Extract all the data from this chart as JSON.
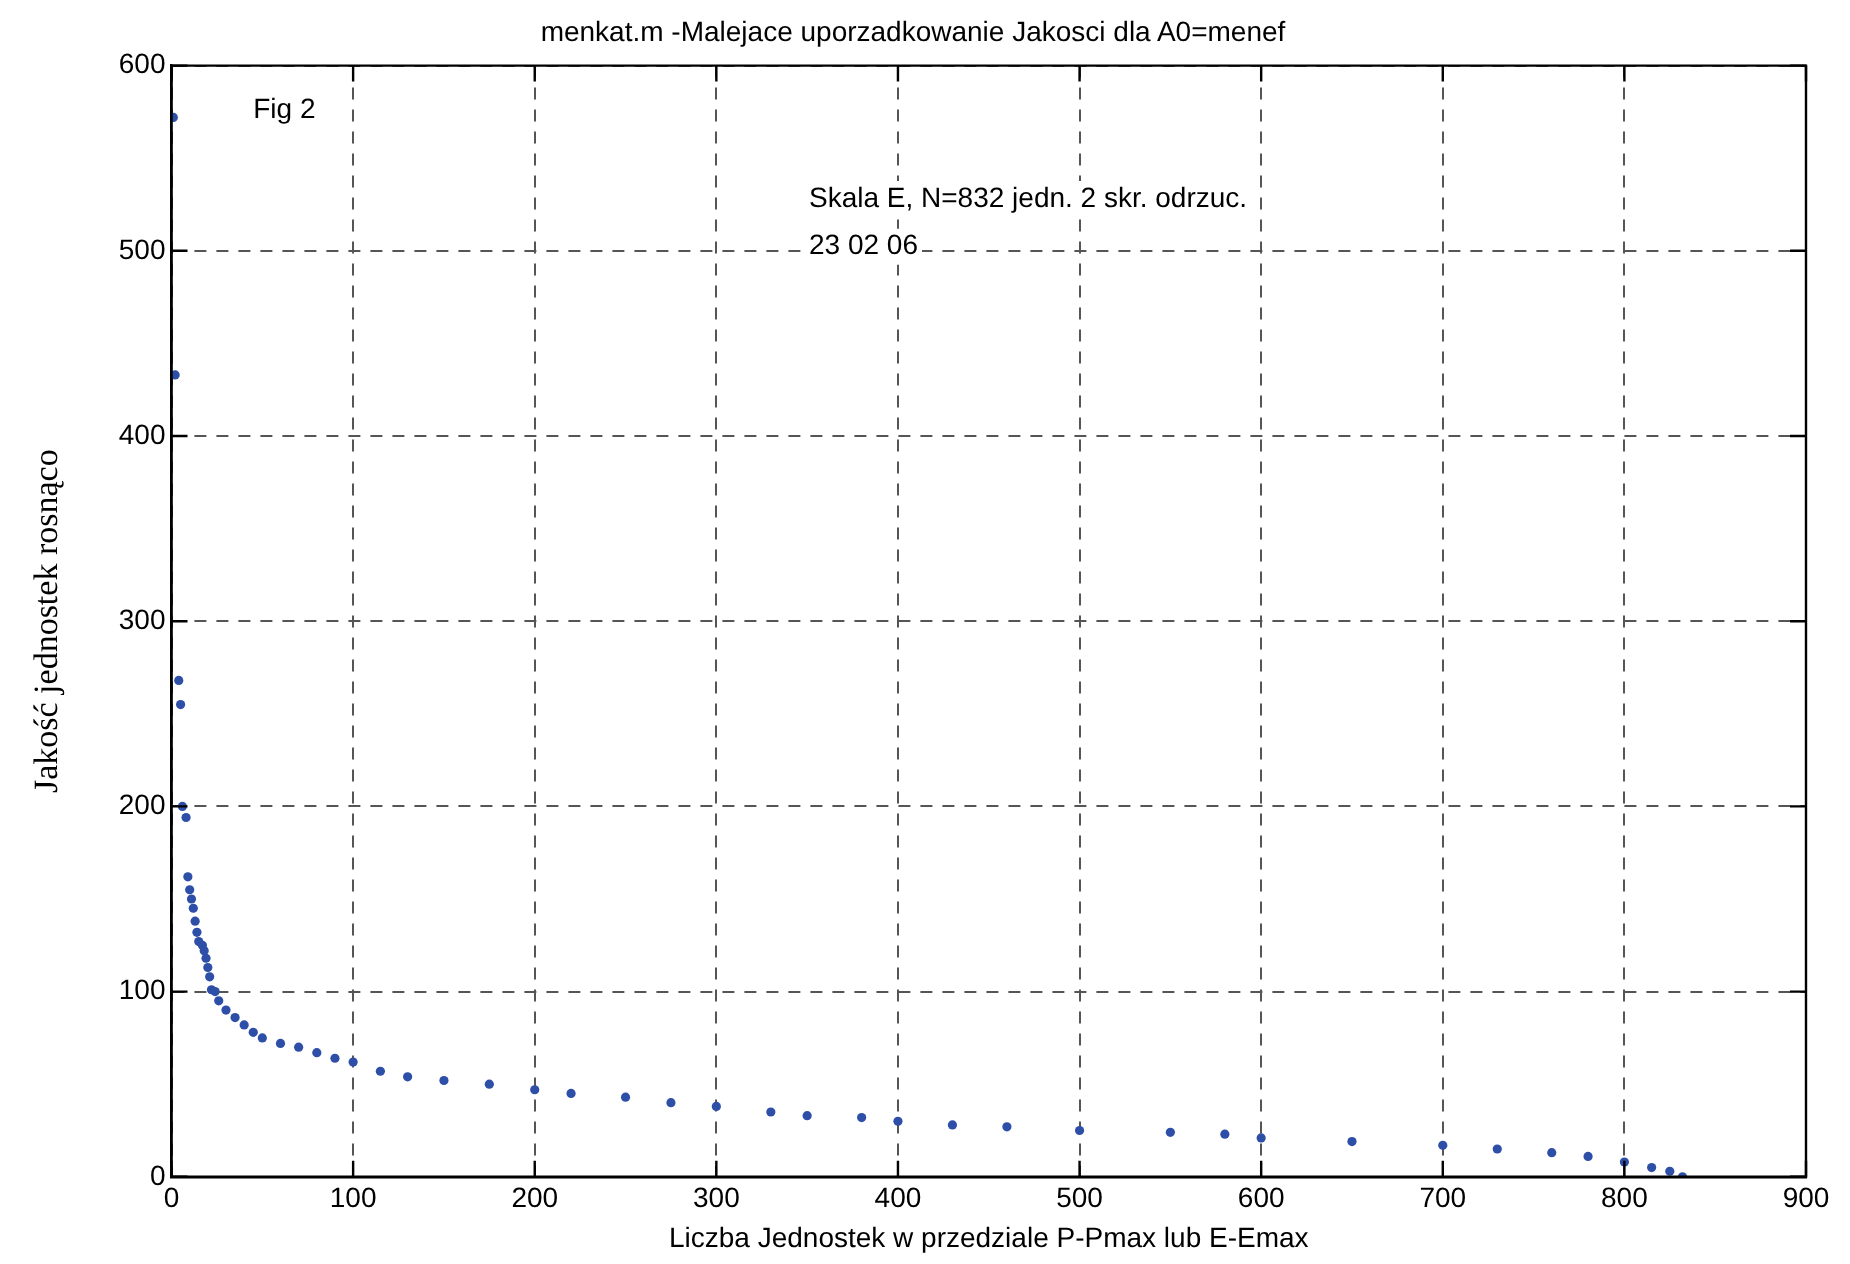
{
  "chart_data": {
    "type": "scatter",
    "title": "menkat.m -Malejace uporzadkowanie Jakosci dla A0=menef",
    "xlabel": "Liczba Jednostek w przedziale P-Pmax lub E-Emax",
    "ylabel": "Jakość jednostek rosnąco",
    "annotations": [
      "Fig 2",
      "Skala E, N=832 jedn. 2 skr. odrzuc.",
      "23 02 06"
    ],
    "x": [
      1,
      2,
      4,
      5,
      6,
      8,
      9,
      10,
      11,
      12,
      13,
      14,
      15,
      17,
      18,
      19,
      20,
      21,
      22,
      24,
      26,
      30,
      35,
      40,
      45,
      50,
      60,
      70,
      80,
      90,
      100,
      115,
      130,
      150,
      175,
      200,
      220,
      250,
      275,
      300,
      330,
      350,
      380,
      400,
      430,
      460,
      500,
      550,
      580,
      600,
      650,
      700,
      730,
      760,
      780,
      800,
      815,
      825,
      832
    ],
    "series": [
      {
        "color": "#2e4fa8",
        "values": [
          572,
          433,
          268,
          255,
          200,
          194,
          162,
          155,
          150,
          145,
          138,
          132,
          127,
          125,
          122,
          118,
          113,
          108,
          101,
          100,
          95,
          90,
          86,
          82,
          78,
          75,
          72,
          70,
          67,
          64,
          62,
          57,
          54,
          52,
          50,
          47,
          45,
          43,
          40,
          38,
          35,
          33,
          32,
          30,
          28,
          27,
          25,
          24,
          23,
          21,
          19,
          17,
          15,
          13,
          11,
          8,
          5,
          3,
          0
        ]
      }
    ],
    "xlim": [
      0,
      900
    ],
    "xticks": [
      0,
      100,
      200,
      300,
      400,
      500,
      600,
      700,
      800,
      900
    ],
    "ylim": [
      0,
      600
    ],
    "yticks": [
      0,
      100,
      200,
      300,
      400,
      500,
      600
    ],
    "grid": true,
    "legend": false,
    "marker": "circle"
  }
}
